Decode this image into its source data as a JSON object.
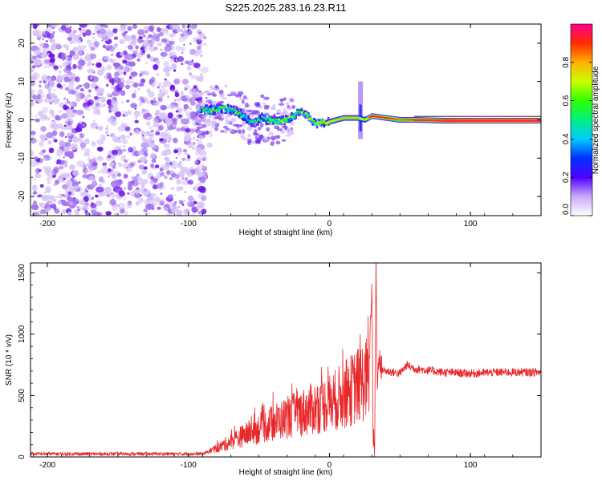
{
  "title": "S225.2025.283.16.23.R11",
  "chart_data": [
    {
      "type": "heatmap",
      "name": "spectrogram",
      "xlabel": "Height of straight line (km)",
      "ylabel": "Frequency (Hz)",
      "xlim": [
        -212,
        150
      ],
      "ylim": [
        -25,
        25
      ],
      "xticks": [
        -200,
        -100,
        0,
        100
      ],
      "yticks": [
        -20,
        -10,
        0,
        10,
        20
      ],
      "colorbar": {
        "label": "Normalized spectral amplitude",
        "range": [
          0,
          1
        ],
        "ticks": [
          "0.0",
          "0.2",
          "0.4",
          "0.6",
          "0.8"
        ],
        "tick_values": [
          0,
          0.2,
          0.4,
          0.6,
          0.8
        ]
      },
      "noise_region_x": [
        -212,
        -88
      ],
      "ridge": {
        "x": [
          -92,
          -85,
          -75,
          -65,
          -55,
          -48,
          -40,
          -30,
          -20,
          -10,
          0,
          10,
          20,
          25,
          30,
          40,
          50,
          60,
          80,
          100,
          120,
          150
        ],
        "freq": [
          2.5,
          2.5,
          3.0,
          2.0,
          -1.0,
          0.5,
          -0.5,
          0.0,
          2.5,
          -1.0,
          -0.5,
          0.5,
          0.5,
          0.0,
          1.0,
          0.5,
          0.0,
          0.0,
          -0.2,
          -0.2,
          -0.2,
          -0.2
        ],
        "amplitude": [
          0.3,
          0.45,
          0.4,
          0.4,
          0.35,
          0.4,
          0.45,
          0.5,
          0.45,
          0.5,
          0.55,
          0.6,
          0.6,
          0.5,
          0.75,
          0.7,
          0.65,
          0.7,
          0.85,
          0.95,
          0.95,
          0.95
        ]
      },
      "spike_x": 22,
      "spike_freq_range": [
        -5,
        10
      ]
    },
    {
      "type": "line",
      "name": "snr",
      "xlabel": "Height of straight line (km)",
      "ylabel": "SNR (10 * v/v)",
      "xlim": [
        -212,
        150
      ],
      "ylim": [
        0,
        1580
      ],
      "xticks": [
        -200,
        -100,
        0,
        100
      ],
      "yticks": [
        0,
        500,
        1000,
        1500
      ],
      "color": "#e8282a",
      "trend": {
        "x": [
          -212,
          -120,
          -90,
          -80,
          -60,
          -40,
          -20,
          0,
          10,
          20,
          28,
          30,
          31,
          32,
          33,
          34,
          35,
          36,
          40,
          50,
          55,
          60,
          80,
          100,
          120,
          150
        ],
        "y": [
          25,
          25,
          25,
          70,
          180,
          280,
          360,
          440,
          500,
          580,
          650,
          1450,
          150,
          60,
          1580,
          500,
          900,
          720,
          700,
          680,
          750,
          720,
          690,
          680,
          690,
          690
        ]
      }
    }
  ]
}
